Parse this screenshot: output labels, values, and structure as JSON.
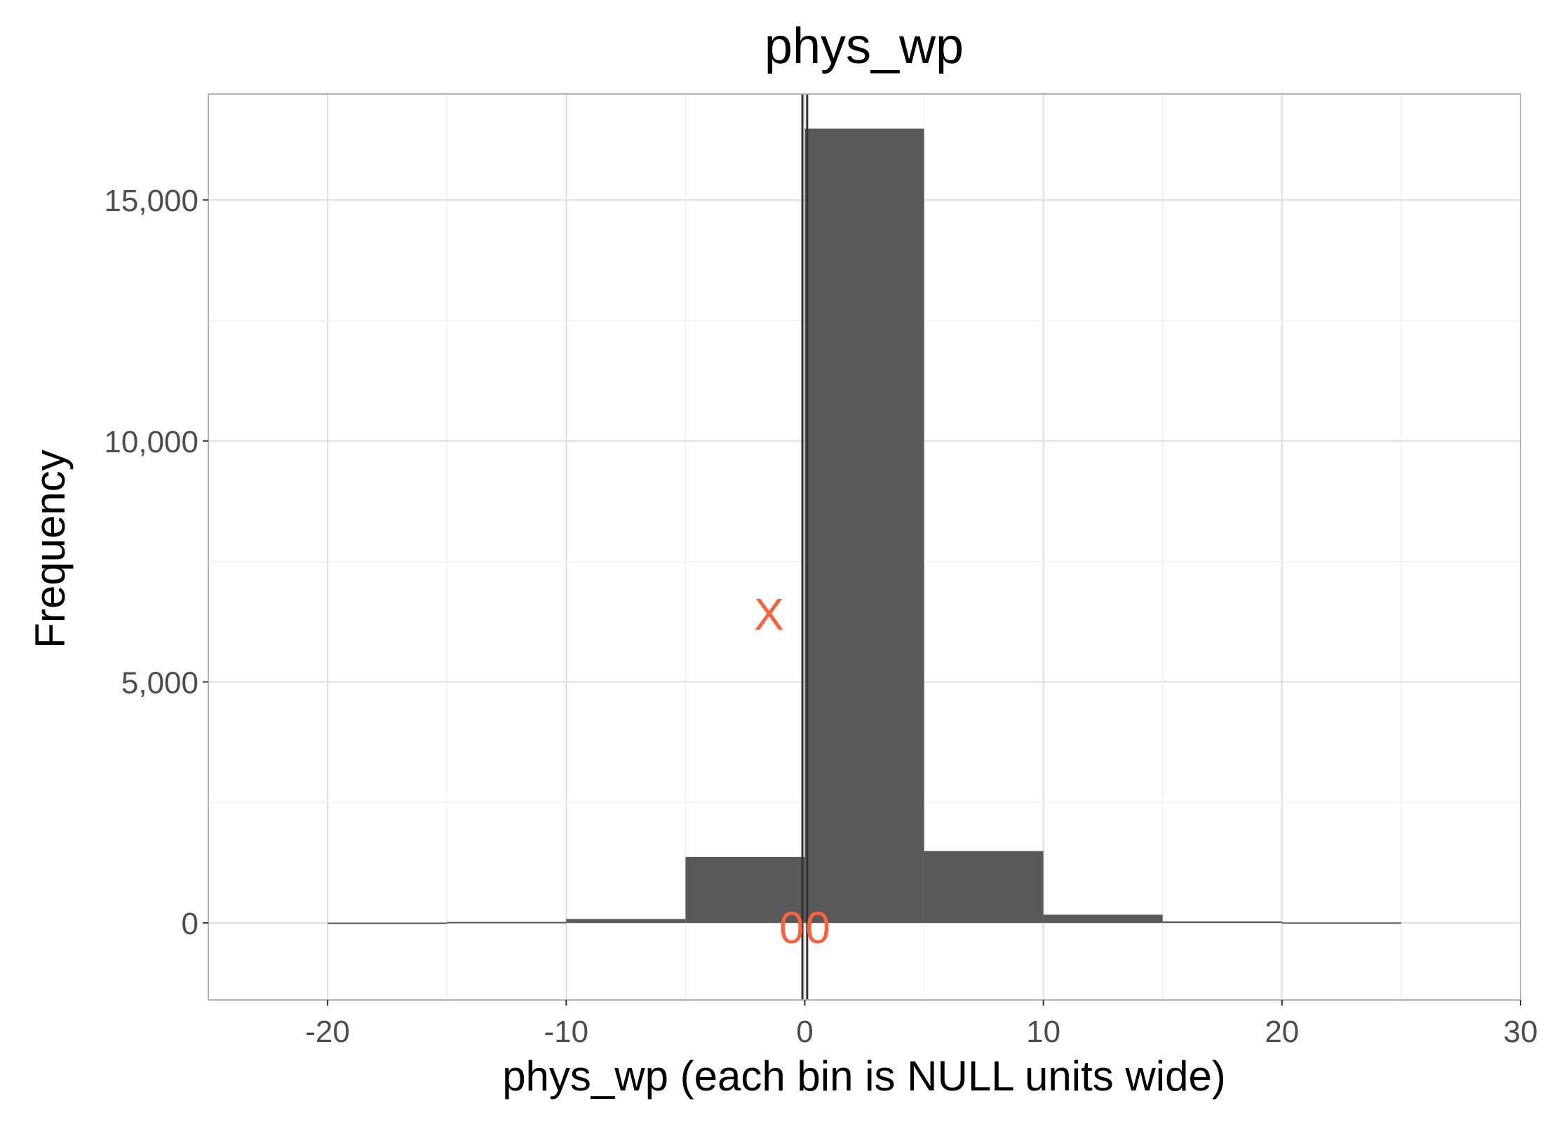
{
  "chart_data": {
    "type": "bar",
    "title": "phys_wp",
    "xlabel": "phys_wp (each bin is NULL units wide)",
    "ylabel": "Frequency",
    "xlim": [
      -25,
      30
    ],
    "ylim": [
      -1600,
      17200
    ],
    "x_ticks": [
      -20,
      -10,
      0,
      10,
      20,
      30
    ],
    "x_tick_labels": [
      "-20",
      "-10",
      "0",
      "10",
      "20",
      "30"
    ],
    "y_ticks": [
      0,
      5000,
      10000,
      15000
    ],
    "y_tick_labels": [
      "0",
      "5,000",
      "10,000",
      "15,000"
    ],
    "bin_width": 5,
    "bins": [
      {
        "x0": -20,
        "x1": -15,
        "count": 5
      },
      {
        "x0": -15,
        "x1": -10,
        "count": 20
      },
      {
        "x0": -10,
        "x1": -5,
        "count": 80
      },
      {
        "x0": -5,
        "x1": 0,
        "count": 1370
      },
      {
        "x0": 0,
        "x1": 5,
        "count": 16480
      },
      {
        "x0": 5,
        "x1": 10,
        "count": 1490
      },
      {
        "x0": 10,
        "x1": 15,
        "count": 170
      },
      {
        "x0": 15,
        "x1": 20,
        "count": 30
      },
      {
        "x0": 20,
        "x1": 25,
        "count": 10
      }
    ],
    "vlines": [
      -0.1,
      0.1
    ],
    "annotations": [
      {
        "text": "X",
        "x": -1.5,
        "y": 6400
      },
      {
        "text": "0",
        "x": -0.55,
        "y": -100
      },
      {
        "text": "0",
        "x": 0.55,
        "y": -100
      }
    ],
    "grid": true,
    "bar_color": "#595959",
    "annotation_color": "#f8623f",
    "vline_color": "#333333"
  }
}
